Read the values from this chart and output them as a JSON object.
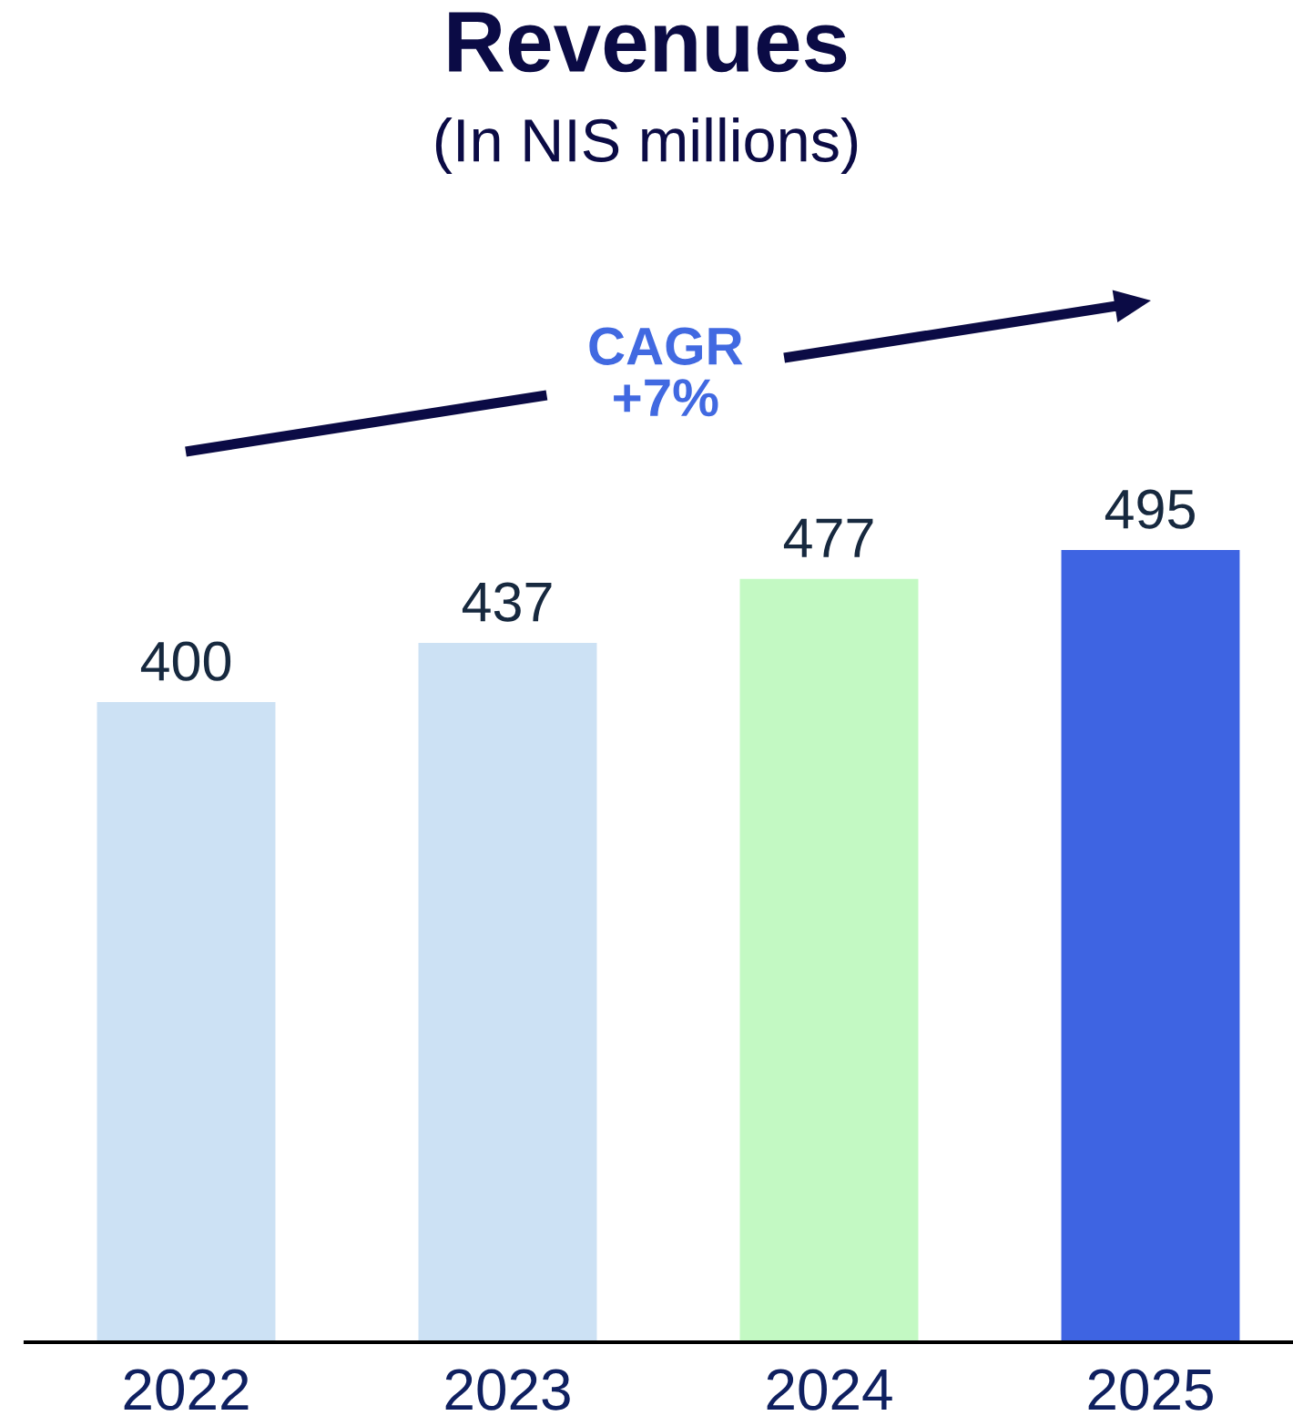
{
  "chart_data": {
    "type": "bar",
    "title": "Revenues",
    "subtitle": "(In NIS millions)",
    "categories": [
      "2022",
      "2023",
      "2024",
      "2025"
    ],
    "values": [
      400,
      437,
      477,
      495
    ],
    "colors": [
      "#cce1f4",
      "#cce1f4",
      "#c3f9c3",
      "#3e64e2"
    ],
    "data_labels": true,
    "tick_labels": "x",
    "annotations": [
      "CAGR\n+7%"
    ]
  }
}
